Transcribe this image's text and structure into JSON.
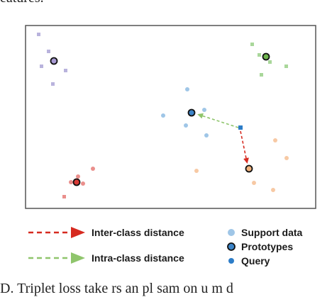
{
  "caption_top": "eatures.",
  "caption_bottom": "D.  Triplet loss take    rs an    pl   sam    on   u m    d",
  "colors": {
    "frame": "#555555",
    "purple": "#b9b3dd",
    "green": "#a9d79a",
    "blue": "#9fc6e7",
    "orange": "#f7c9a4",
    "red": "#ea8f8c",
    "purple_proto": "#a89ad3",
    "green_proto": "#6fb54f",
    "blue_proto": "#3c84c8",
    "orange_proto": "#f2b37e",
    "red_proto": "#d93a36",
    "query": "#2d7dc8",
    "inter_arrow": "#d62a20",
    "intra_arrow": "#8fc56c"
  },
  "legend": {
    "inter_label": "Inter-class distance",
    "intra_label": "Intra-class distance",
    "support_label": "Support data",
    "prototype_label": "Prototypes",
    "query_label": "Query"
  }
}
